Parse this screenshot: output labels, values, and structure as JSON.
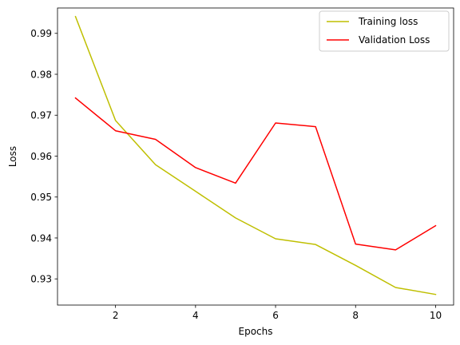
{
  "chart_data": {
    "type": "line",
    "title": "",
    "xlabel": "Epochs",
    "ylabel": "Loss",
    "x": [
      1,
      2,
      3,
      4,
      5,
      6,
      7,
      8,
      9,
      10
    ],
    "xlim": [
      0.55,
      10.45
    ],
    "ylim": [
      0.9236,
      0.9962
    ],
    "xticks": [
      2,
      4,
      6,
      8,
      10
    ],
    "yticks": [
      0.93,
      0.94,
      0.95,
      0.96,
      0.97,
      0.98,
      0.99
    ],
    "grid": false,
    "legend_position": "top-right",
    "series": [
      {
        "name": "Training loss",
        "color": "#bfbf00",
        "values": [
          0.9941,
          0.9687,
          0.9579,
          0.9514,
          0.9449,
          0.9398,
          0.9384,
          0.9333,
          0.9279,
          0.9262
        ]
      },
      {
        "name": "Validation Loss",
        "color": "#ff0000",
        "values": [
          0.9742,
          0.9662,
          0.9641,
          0.9572,
          0.9534,
          0.9681,
          0.9672,
          0.9385,
          0.9371,
          0.943
        ]
      }
    ]
  }
}
